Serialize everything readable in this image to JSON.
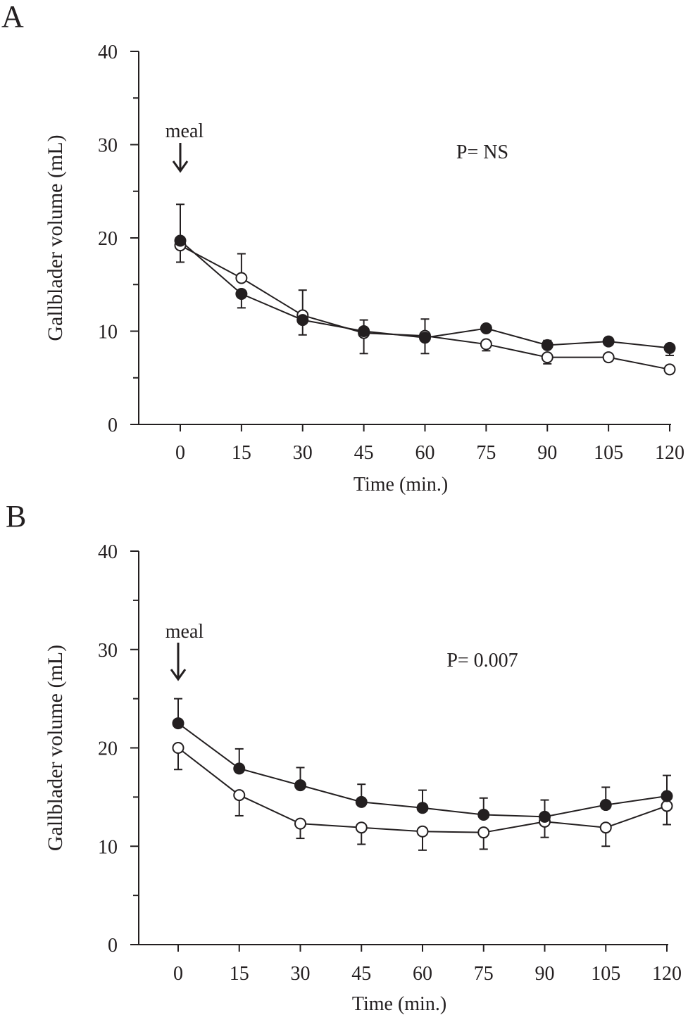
{
  "chart_data": [
    {
      "type": "line",
      "panel_label": "A",
      "title": "",
      "xlabel": "Time (min.)",
      "ylabel": "Gallblader volume (mL)",
      "x": [
        0,
        15,
        30,
        45,
        60,
        75,
        90,
        105,
        120
      ],
      "x_tick_labels": [
        "0",
        "15",
        "30",
        "45",
        "60",
        "75",
        "90",
        "105",
        "120"
      ],
      "y_tick_labels": [
        "0",
        "10",
        "20",
        "30",
        "40"
      ],
      "ylim": [
        0,
        40
      ],
      "annotations": {
        "meal": "meal",
        "p_value": "P= NS"
      },
      "series": [
        {
          "name": "filled",
          "marker": "filled-circle",
          "values": [
            19.7,
            14.0,
            11.2,
            10.0,
            9.3,
            10.3,
            8.5,
            8.9,
            8.2
          ],
          "err_bar_end": [
            23.6,
            12.5,
            9.6,
            7.6,
            7.6,
            null,
            9.0,
            null,
            7.4
          ]
        },
        {
          "name": "open",
          "marker": "open-circle",
          "values": [
            19.2,
            15.7,
            11.7,
            9.8,
            9.5,
            8.6,
            7.2,
            7.2,
            5.9
          ],
          "err_bar_end": [
            17.4,
            18.3,
            14.4,
            11.2,
            11.3,
            7.9,
            6.5,
            6.8,
            null
          ]
        }
      ]
    },
    {
      "type": "line",
      "panel_label": "B",
      "title": "",
      "xlabel": "Time (min.)",
      "ylabel": "Gallblader volume (mL)",
      "x": [
        0,
        15,
        30,
        45,
        60,
        75,
        90,
        105,
        120
      ],
      "x_tick_labels": [
        "0",
        "15",
        "30",
        "45",
        "60",
        "75",
        "90",
        "105",
        "120"
      ],
      "y_tick_labels": [
        "0",
        "10",
        "20",
        "30",
        "40"
      ],
      "ylim": [
        0,
        40
      ],
      "annotations": {
        "meal": "meal",
        "p_value": "P= 0.007"
      },
      "series": [
        {
          "name": "filled",
          "marker": "filled-circle",
          "values": [
            22.5,
            17.9,
            16.2,
            14.5,
            13.9,
            13.2,
            13.0,
            14.2,
            15.1
          ],
          "err_bar_end": [
            25.0,
            19.9,
            18.0,
            16.3,
            15.7,
            14.9,
            14.7,
            16.0,
            17.2
          ]
        },
        {
          "name": "open",
          "marker": "open-circle",
          "values": [
            20.0,
            15.2,
            12.3,
            11.9,
            11.5,
            11.4,
            12.5,
            11.9,
            14.1
          ],
          "err_bar_end": [
            17.8,
            13.1,
            10.8,
            10.2,
            9.6,
            9.7,
            10.9,
            10.0,
            12.2
          ]
        }
      ]
    }
  ]
}
